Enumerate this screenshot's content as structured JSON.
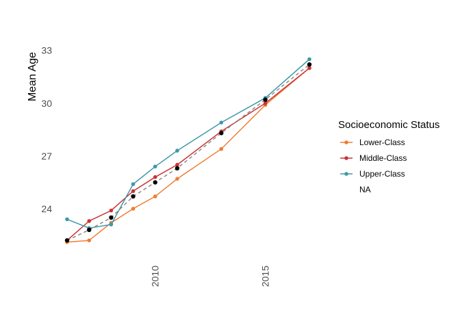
{
  "chart_data": {
    "type": "line",
    "title": "",
    "xlabel": "",
    "ylabel": "Mean Age",
    "xlim": [
      2006,
      2017
    ],
    "ylim": [
      21,
      34
    ],
    "x_ticks": [
      2010,
      2015
    ],
    "y_ticks": [
      24,
      27,
      30,
      33
    ],
    "grid": false,
    "legend": {
      "title": "Socioeconomic Status",
      "position": "right",
      "entries": [
        {
          "label": "Lower-Class",
          "color": "#f07c35"
        },
        {
          "label": "Middle-Class",
          "color": "#cc3333"
        },
        {
          "label": "Upper-Class",
          "color": "#3d98a8"
        },
        {
          "label": "NA",
          "color": ""
        }
      ]
    },
    "series": [
      {
        "name": "Lower-Class",
        "color": "#f07c35",
        "x": [
          2006,
          2007,
          2008,
          2009,
          2010,
          2011,
          2013,
          2015,
          2017
        ],
        "values": [
          22.1,
          22.2,
          23.2,
          24.0,
          24.7,
          25.7,
          27.4,
          29.9,
          32.0
        ]
      },
      {
        "name": "Middle-Class",
        "color": "#cc3333",
        "x": [
          2006,
          2007,
          2008,
          2009,
          2010,
          2011,
          2013,
          2015,
          2017
        ],
        "values": [
          22.2,
          23.3,
          23.9,
          25.0,
          25.8,
          26.5,
          28.4,
          30.0,
          32.0
        ]
      },
      {
        "name": "Upper-Class",
        "color": "#3d98a8",
        "x": [
          2006,
          2007,
          2008,
          2009,
          2010,
          2011,
          2013,
          2015,
          2017
        ],
        "values": [
          23.4,
          22.9,
          23.1,
          25.4,
          26.4,
          27.3,
          28.9,
          30.3,
          32.5
        ]
      },
      {
        "name": "NA",
        "color": "#000000",
        "line_color": "#888888",
        "line_style": "dashed",
        "x": [
          2006,
          2007,
          2008,
          2009,
          2010,
          2011,
          2013,
          2015,
          2017
        ],
        "values": [
          22.2,
          22.8,
          23.5,
          24.7,
          25.5,
          26.3,
          28.3,
          30.2,
          32.2
        ]
      }
    ]
  }
}
